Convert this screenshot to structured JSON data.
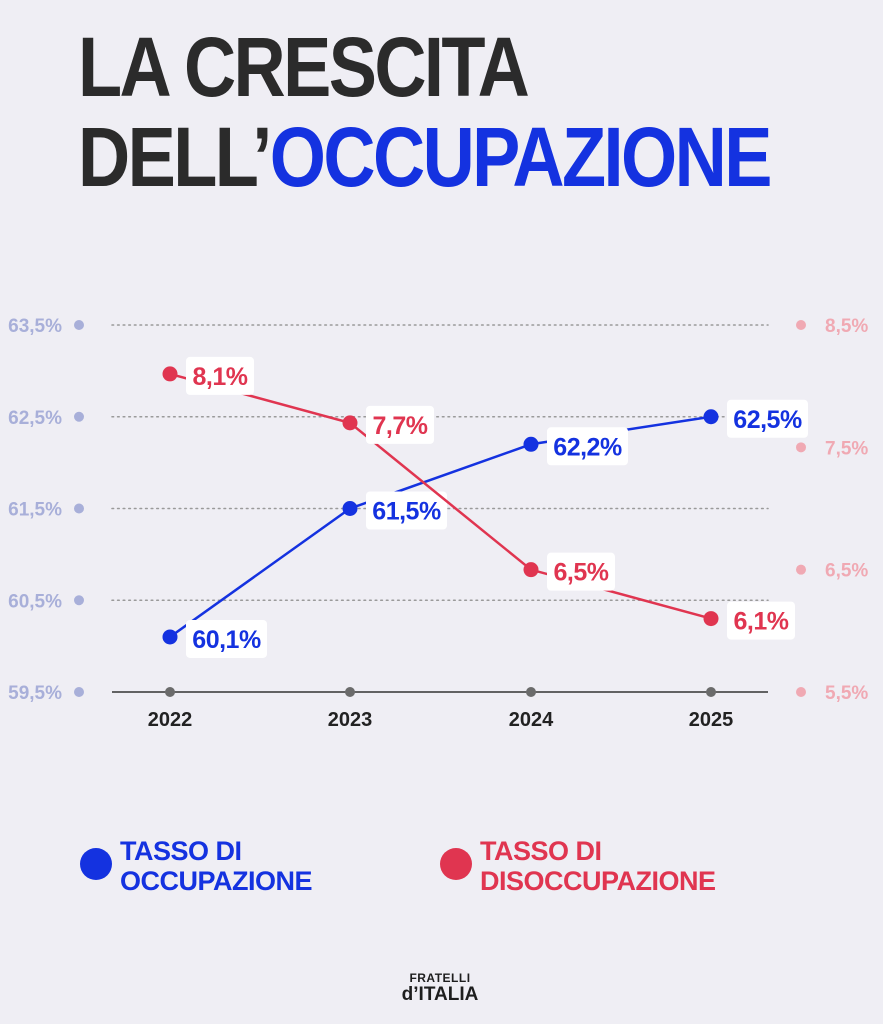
{
  "title": {
    "line1": "LA CRESCITA",
    "line2_prefix": "DELL’",
    "line2_accent": "OCCUPAZIONE"
  },
  "colors": {
    "background": "#efeef4",
    "title": "#2b2b2b",
    "accent": "#1432e0",
    "occupazione": "#1432e0",
    "disoccupazione": "#e03550",
    "left_axis_text": "#a8afd9",
    "right_axis_text": "#f0a9b3",
    "gridline": "#9a9a9a"
  },
  "chart_data": {
    "type": "line",
    "categories": [
      "2022",
      "2023",
      "2024",
      "2025"
    ],
    "series": [
      {
        "name": "TASSO DI OCCUPAZIONE",
        "axis": "left",
        "values": [
          60.1,
          61.5,
          62.2,
          62.5
        ],
        "labels": [
          "60,1%",
          "61,5%",
          "62,2%",
          "62,5%"
        ]
      },
      {
        "name": "TASSO DI DISOCCUPAZIONE",
        "axis": "right",
        "values": [
          8.1,
          7.7,
          6.5,
          6.1
        ],
        "labels": [
          "8,1%",
          "7,7%",
          "6,5%",
          "6,1%"
        ]
      }
    ],
    "left_axis": {
      "range": [
        59.5,
        63.5
      ],
      "ticks": [
        "63,5%",
        "62,5%",
        "61,5%",
        "60,5%",
        "59,5%"
      ]
    },
    "right_axis": {
      "range": [
        5.5,
        8.5
      ],
      "ticks": [
        "8,5%",
        "7,5%",
        "6,5%",
        "5,5%"
      ]
    },
    "grid": "dotted horizontal"
  },
  "legend": [
    {
      "label": "TASSO DI\nOCCUPAZIONE",
      "color": "#1432e0"
    },
    {
      "label": "TASSO DI\nDISOCCUPAZIONE",
      "color": "#e03550"
    }
  ],
  "logo": {
    "line1": "FRATELLI",
    "line2": "d’ITALIA"
  }
}
